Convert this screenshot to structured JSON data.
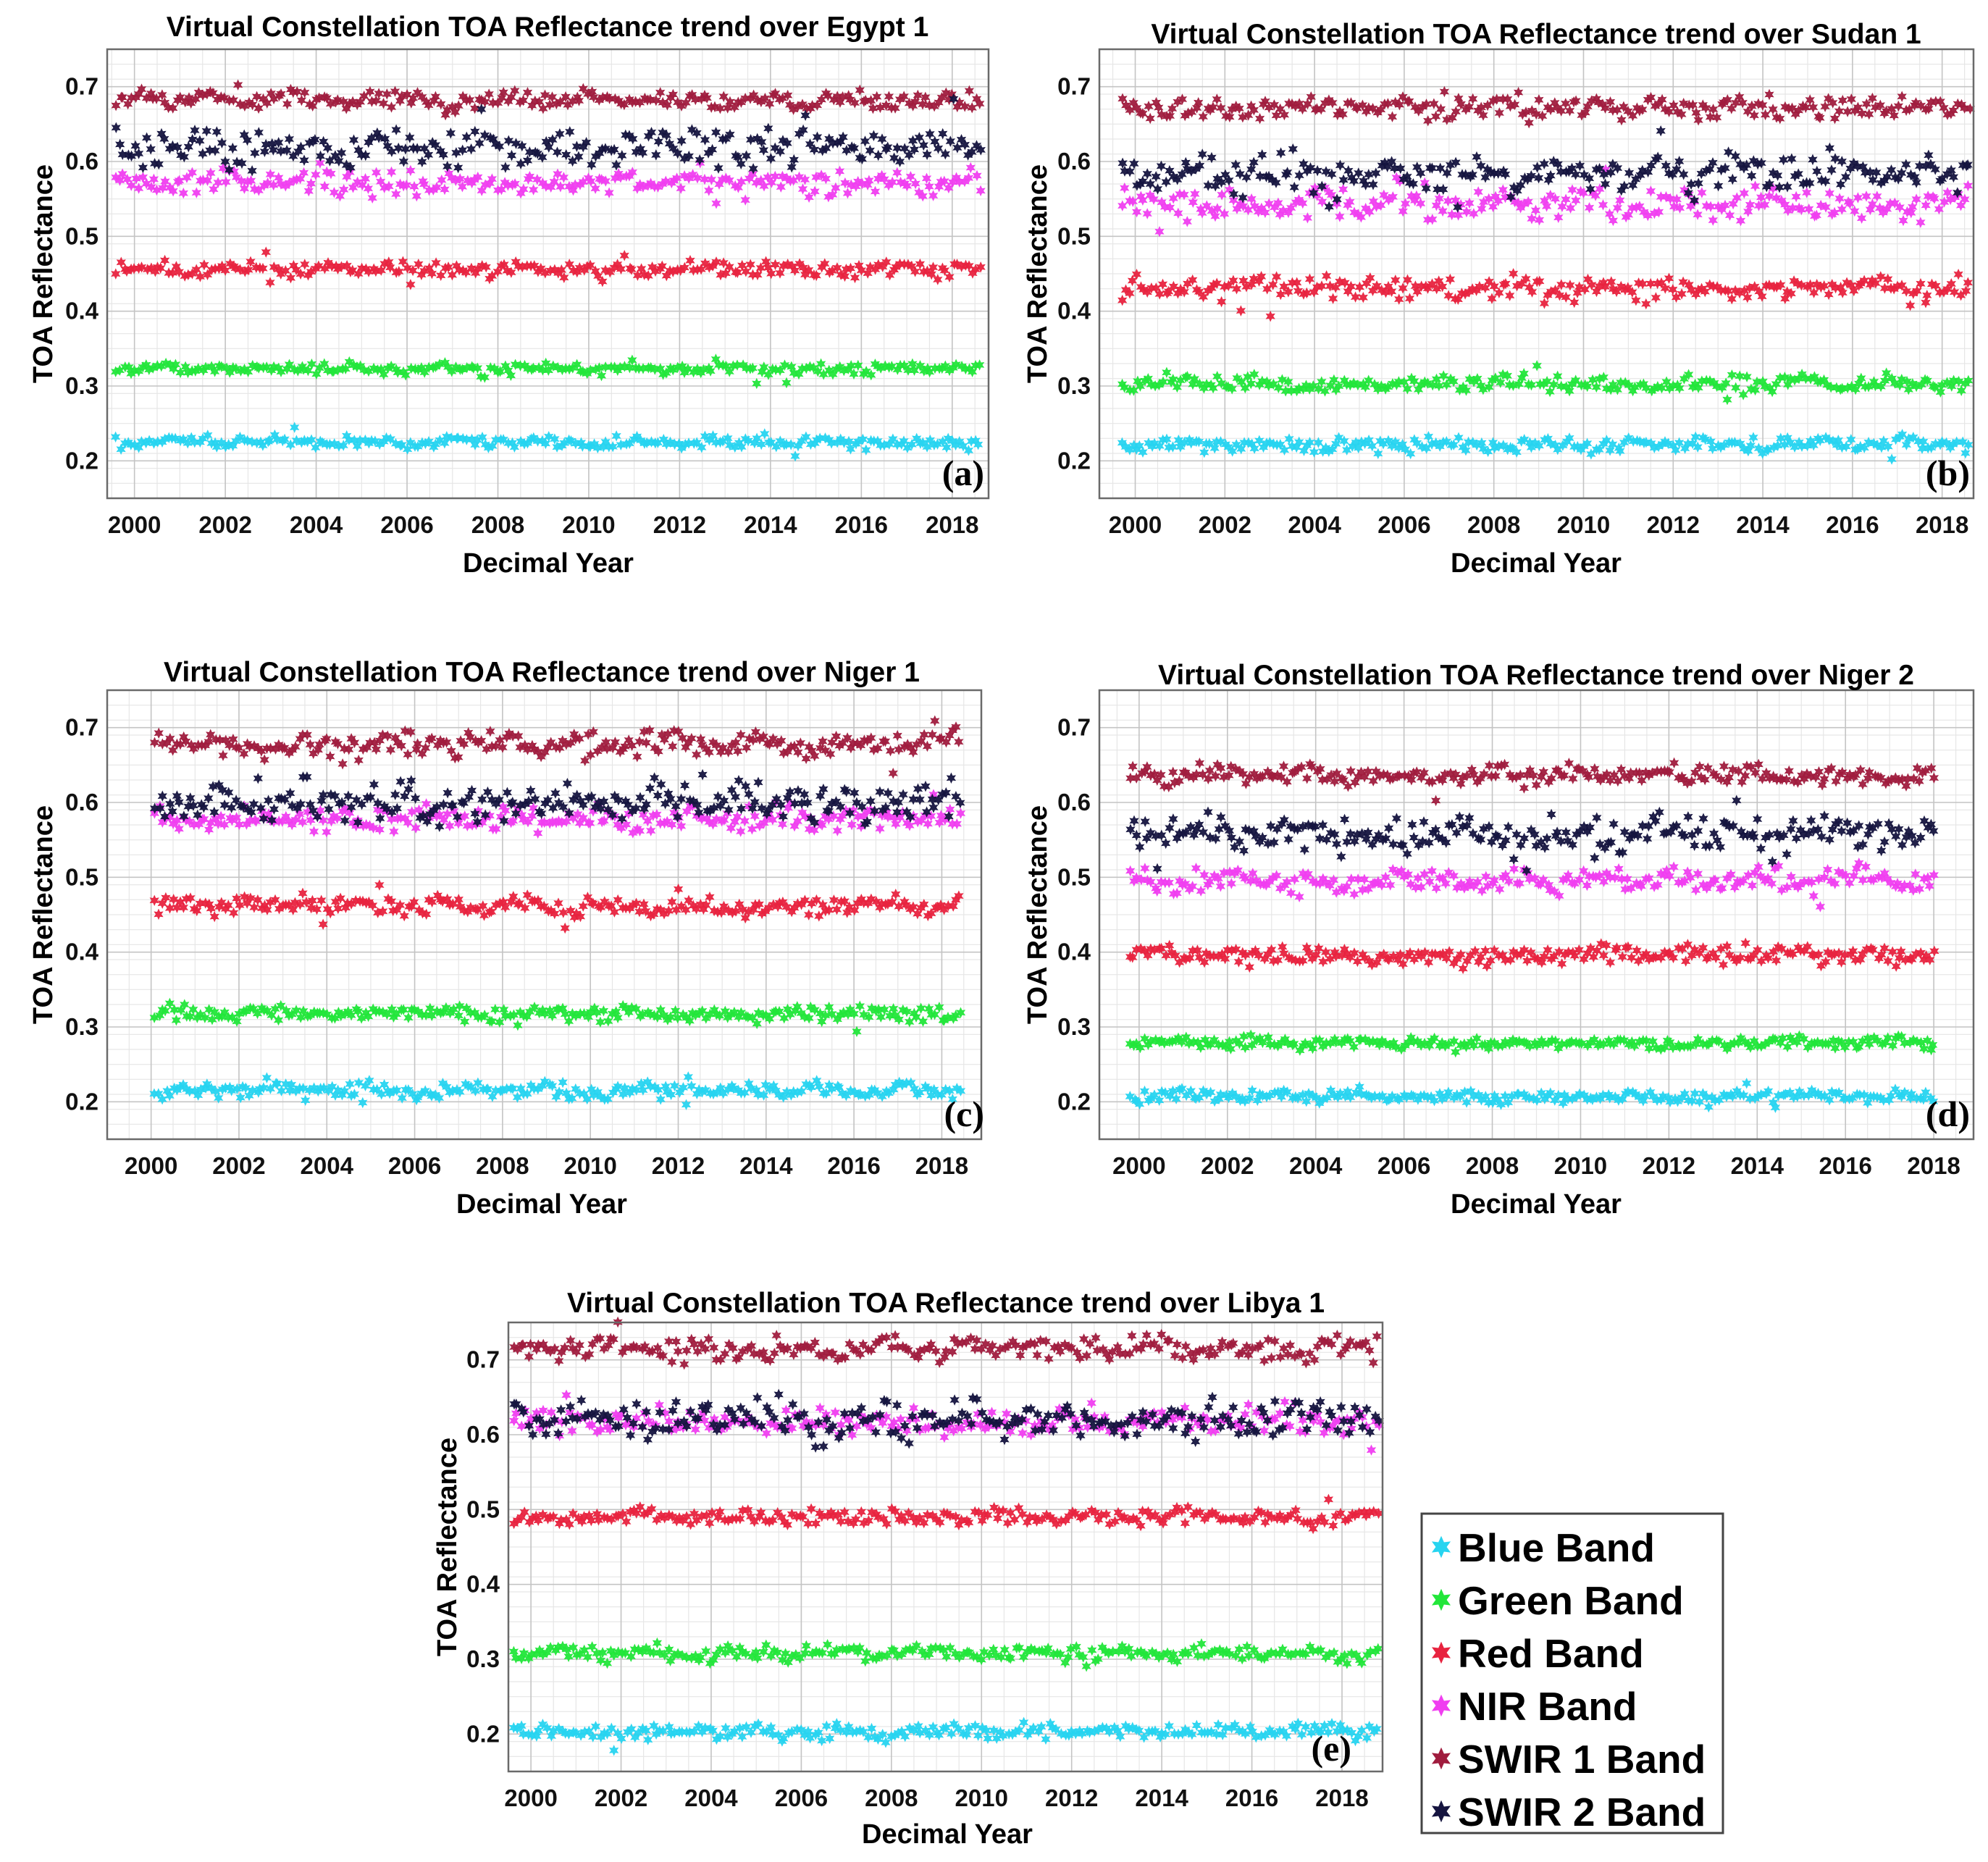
{
  "colors": {
    "blue": "#27d4f0",
    "green": "#22e63a",
    "red": "#e8233f",
    "nir": "#f03ef0",
    "swir1": "#a01c3e",
    "swir2": "#15143f"
  },
  "legend": {
    "items": [
      {
        "key": "blue",
        "label": "Blue Band"
      },
      {
        "key": "green",
        "label": "Green Band"
      },
      {
        "key": "red",
        "label": "Red Band"
      },
      {
        "key": "nir",
        "label": "NIR Band"
      },
      {
        "key": "swir1",
        "label": "SWIR 1 Band"
      },
      {
        "key": "swir2",
        "label": "SWIR 2 Band"
      }
    ]
  },
  "chart_data": [
    {
      "type": "scatter",
      "panel_label": "(a)",
      "title": "Virtual Constellation TOA Reflectance trend over Egypt 1",
      "xlabel": "Decimal Year",
      "ylabel": "TOA Reflectance",
      "xlim": [
        1999.4,
        2018.8
      ],
      "ylim": [
        0.15,
        0.75
      ],
      "xticks": [
        2000,
        2002,
        2004,
        2006,
        2008,
        2010,
        2012,
        2014,
        2016,
        2018
      ],
      "yticks": [
        0.2,
        0.3,
        0.4,
        0.5,
        0.6,
        0.7
      ],
      "grid": true,
      "x_range": [
        1999.6,
        2018.6
      ],
      "series": [
        {
          "name": "Blue Band",
          "key": "blue",
          "mean": 0.225,
          "spread": 0.004
        },
        {
          "name": "Green Band",
          "key": "green",
          "mean": 0.323,
          "spread": 0.004
        },
        {
          "name": "Red Band",
          "key": "red",
          "mean": 0.456,
          "spread": 0.005
        },
        {
          "name": "NIR Band",
          "key": "nir",
          "mean": 0.572,
          "spread": 0.008
        },
        {
          "name": "SWIR 1 Band",
          "key": "swir1",
          "mean": 0.682,
          "spread": 0.006
        },
        {
          "name": "SWIR 2 Band",
          "key": "swir2",
          "mean": 0.617,
          "spread": 0.012
        }
      ]
    },
    {
      "type": "scatter",
      "panel_label": "(b)",
      "title": "Virtual Constellation TOA Reflectance trend over Sudan 1",
      "xlabel": "Decimal Year",
      "ylabel": "TOA Reflectance",
      "xlim": [
        1999.2,
        2018.7
      ],
      "ylim": [
        0.15,
        0.75
      ],
      "xticks": [
        2000,
        2002,
        2004,
        2006,
        2008,
        2010,
        2012,
        2014,
        2016,
        2018
      ],
      "yticks": [
        0.2,
        0.3,
        0.4,
        0.5,
        0.6,
        0.7
      ],
      "grid": true,
      "x_range": [
        1999.7,
        2018.6
      ],
      "series": [
        {
          "name": "Blue Band",
          "key": "blue",
          "mean": 0.222,
          "spread": 0.005
        },
        {
          "name": "Green Band",
          "key": "green",
          "mean": 0.303,
          "spread": 0.005
        },
        {
          "name": "Red Band",
          "key": "red",
          "mean": 0.43,
          "spread": 0.007
        },
        {
          "name": "NIR Band",
          "key": "nir",
          "mean": 0.542,
          "spread": 0.01
        },
        {
          "name": "SWIR 1 Band",
          "key": "swir1",
          "mean": 0.672,
          "spread": 0.007
        },
        {
          "name": "SWIR 2 Band",
          "key": "swir2",
          "mean": 0.585,
          "spread": 0.012
        }
      ]
    },
    {
      "type": "scatter",
      "panel_label": "(c)",
      "title": "Virtual Constellation TOA Reflectance trend over Niger 1",
      "xlabel": "Decimal Year",
      "ylabel": "TOA Reflectance",
      "xlim": [
        1999.0,
        2018.9
      ],
      "ylim": [
        0.15,
        0.75
      ],
      "xticks": [
        2000,
        2002,
        2004,
        2006,
        2008,
        2010,
        2012,
        2014,
        2016,
        2018
      ],
      "yticks": [
        0.2,
        0.3,
        0.4,
        0.5,
        0.6,
        0.7
      ],
      "grid": true,
      "x_range": [
        2000.1,
        2018.4
      ],
      "series": [
        {
          "name": "Blue Band",
          "key": "blue",
          "mean": 0.215,
          "spread": 0.005
        },
        {
          "name": "Green Band",
          "key": "green",
          "mean": 0.317,
          "spread": 0.005
        },
        {
          "name": "Red Band",
          "key": "red",
          "mean": 0.462,
          "spread": 0.006
        },
        {
          "name": "NIR Band",
          "key": "nir",
          "mean": 0.578,
          "spread": 0.008
        },
        {
          "name": "SWIR 1 Band",
          "key": "swir1",
          "mean": 0.678,
          "spread": 0.008
        },
        {
          "name": "SWIR 2 Band",
          "key": "swir2",
          "mean": 0.6,
          "spread": 0.013
        }
      ]
    },
    {
      "type": "scatter",
      "panel_label": "(d)",
      "title": "Virtual Constellation TOA Reflectance trend over Niger 2",
      "xlabel": "Decimal Year",
      "ylabel": "TOA Reflectance",
      "xlim": [
        1999.1,
        2018.9
      ],
      "ylim": [
        0.15,
        0.75
      ],
      "xticks": [
        2000,
        2002,
        2004,
        2006,
        2008,
        2010,
        2012,
        2014,
        2016,
        2018
      ],
      "yticks": [
        0.2,
        0.3,
        0.4,
        0.5,
        0.6,
        0.7
      ],
      "grid": true,
      "x_range": [
        1999.8,
        2018.0
      ],
      "series": [
        {
          "name": "Blue Band",
          "key": "blue",
          "mean": 0.207,
          "spread": 0.004
        },
        {
          "name": "Green Band",
          "key": "green",
          "mean": 0.279,
          "spread": 0.004
        },
        {
          "name": "Red Band",
          "key": "red",
          "mean": 0.396,
          "spread": 0.006
        },
        {
          "name": "NIR Band",
          "key": "nir",
          "mean": 0.495,
          "spread": 0.008
        },
        {
          "name": "SWIR 1 Band",
          "key": "swir1",
          "mean": 0.636,
          "spread": 0.006
        },
        {
          "name": "SWIR 2 Band",
          "key": "swir2",
          "mean": 0.556,
          "spread": 0.012
        }
      ]
    },
    {
      "type": "scatter",
      "panel_label": "(e)",
      "title": "Virtual Constellation TOA Reflectance trend over Libya 1",
      "xlabel": "Decimal Year",
      "ylabel": "TOA Reflectance",
      "xlim": [
        1999.5,
        2018.9
      ],
      "ylim": [
        0.15,
        0.75
      ],
      "xticks": [
        2000,
        2002,
        2004,
        2006,
        2008,
        2010,
        2012,
        2014,
        2016,
        2018
      ],
      "yticks": [
        0.2,
        0.3,
        0.4,
        0.5,
        0.6,
        0.7
      ],
      "grid": true,
      "x_range": [
        1999.6,
        2018.8
      ],
      "series": [
        {
          "name": "Blue Band",
          "key": "blue",
          "mean": 0.203,
          "spread": 0.005
        },
        {
          "name": "Green Band",
          "key": "green",
          "mean": 0.308,
          "spread": 0.005
        },
        {
          "name": "Red Band",
          "key": "red",
          "mean": 0.49,
          "spread": 0.005
        },
        {
          "name": "NIR Band",
          "key": "nir",
          "mean": 0.616,
          "spread": 0.008
        },
        {
          "name": "SWIR 1 Band",
          "key": "swir1",
          "mean": 0.715,
          "spread": 0.008
        },
        {
          "name": "SWIR 2 Band",
          "key": "swir2",
          "mean": 0.62,
          "spread": 0.012
        }
      ]
    }
  ]
}
